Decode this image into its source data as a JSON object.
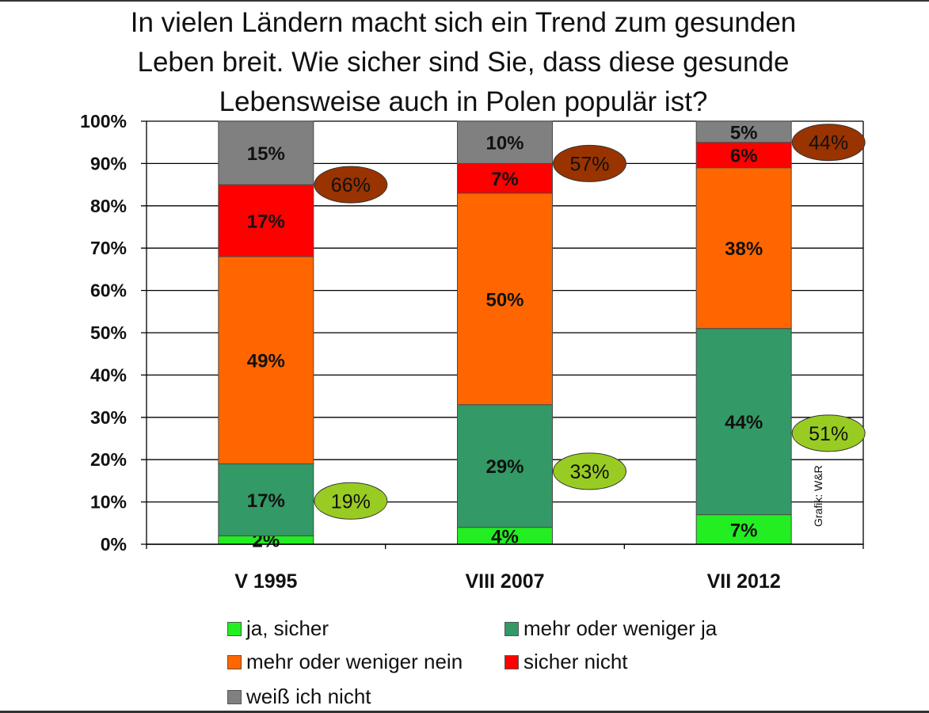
{
  "title_lines": [
    "In vielen Ländern macht sich ein Trend zum gesunden",
    "Leben breit. Wie sicher sind Sie, dass diese gesunde",
    "Lebensweise auch in Polen populär ist?"
  ],
  "credit": "Grafik: W&R",
  "colors": {
    "ja_sicher": "#22ee22",
    "mehr_ja": "#339966",
    "mehr_nein": "#ff6600",
    "sicher_nicht": "#ff0000",
    "weiss_nicht": "#808080",
    "balloon_green": "#99cc22",
    "balloon_brown": "#993300"
  },
  "chart_data": {
    "type": "bar",
    "stacked": true,
    "title": "In vielen Ländern macht sich ein Trend zum gesunden Leben breit. Wie sicher sind Sie, dass diese gesunde Lebensweise auch in Polen populär ist?",
    "categories": [
      "V 1995",
      "VIII 2007",
      "VII 2012"
    ],
    "ylim": [
      0,
      100
    ],
    "yticks": [
      "0%",
      "10%",
      "20%",
      "30%",
      "40%",
      "50%",
      "60%",
      "70%",
      "80%",
      "90%",
      "100%"
    ],
    "grid": true,
    "series": [
      {
        "name": "ja, sicher",
        "key": "ja_sicher",
        "values": [
          2,
          4,
          7
        ],
        "labels": [
          "2%",
          "4%",
          "7%"
        ]
      },
      {
        "name": "mehr oder weniger ja",
        "key": "mehr_ja",
        "values": [
          17,
          29,
          44
        ],
        "labels": [
          "17%",
          "29%",
          "44%"
        ]
      },
      {
        "name": "mehr oder weniger nein",
        "key": "mehr_nein",
        "values": [
          49,
          50,
          38
        ],
        "labels": [
          "49%",
          "50%",
          "38%"
        ]
      },
      {
        "name": "sicher nicht",
        "key": "sicher_nicht",
        "values": [
          17,
          7,
          6
        ],
        "labels": [
          "17%",
          "7%",
          "6%"
        ]
      },
      {
        "name": "weiß ich nicht",
        "key": "weiss_nicht",
        "values": [
          15,
          10,
          5
        ],
        "labels": [
          "15%",
          "10%",
          "5%"
        ]
      }
    ],
    "annotations": {
      "yes_total": {
        "values": [
          19,
          33,
          51
        ],
        "labels": [
          "19%",
          "33%",
          "51%"
        ]
      },
      "no_total": {
        "values": [
          66,
          57,
          44
        ],
        "labels": [
          "66%",
          "57%",
          "44%"
        ]
      }
    },
    "legend": [
      "ja, sicher",
      "mehr oder weniger ja",
      "mehr oder weniger nein",
      "sicher nicht",
      "weiß ich nicht"
    ],
    "legend_position": "bottom"
  }
}
